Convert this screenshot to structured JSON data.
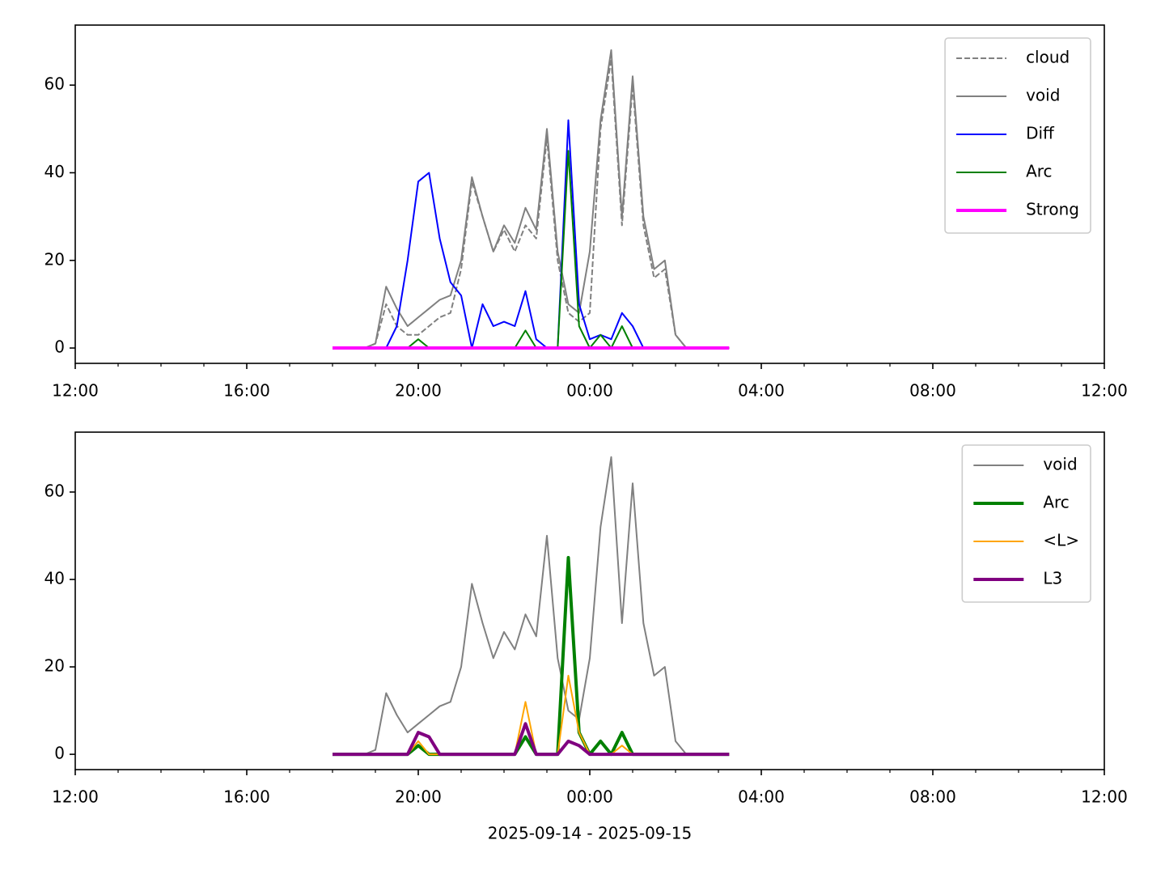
{
  "chart_data": [
    {
      "type": "line",
      "x": [
        6.0,
        6.25,
        6.5,
        6.75,
        7.0,
        7.25,
        7.5,
        7.75,
        8.0,
        8.25,
        8.5,
        8.75,
        9.0,
        9.25,
        9.5,
        9.75,
        10.0,
        10.25,
        10.5,
        10.75,
        11.0,
        11.25,
        11.5,
        11.75,
        12.0,
        12.25,
        12.5,
        12.75,
        13.0,
        13.25,
        13.5,
        13.75,
        14.0,
        14.25,
        14.5,
        14.75,
        15.0,
        15.25
      ],
      "xlim": [
        0,
        24
      ],
      "xticks": [
        {
          "value": 0,
          "label": "12:00"
        },
        {
          "value": 4,
          "label": "16:00"
        },
        {
          "value": 8,
          "label": "20:00"
        },
        {
          "value": 12,
          "label": "00:00"
        },
        {
          "value": 16,
          "label": "04:00"
        },
        {
          "value": 20,
          "label": "08:00"
        },
        {
          "value": 24,
          "label": "12:00"
        }
      ],
      "xminorticks": [
        1,
        2,
        3,
        5,
        6,
        7,
        9,
        10,
        11,
        13,
        14,
        15,
        17,
        18,
        19,
        21,
        22,
        23
      ],
      "ylim": [
        -3.5,
        73.7
      ],
      "yticks": [
        0,
        20,
        40,
        60
      ],
      "legend": "upper right",
      "series": [
        {
          "name": "cloud",
          "color": "#808080",
          "linestyle": "dashed",
          "linewidth": 2,
          "values": [
            0,
            0,
            0,
            0,
            1,
            10,
            5,
            3,
            3,
            5,
            7,
            8,
            18,
            38,
            30,
            22,
            27,
            22,
            28,
            25,
            48,
            20,
            8,
            6,
            8,
            50,
            66,
            28,
            60,
            28,
            16,
            18,
            3,
            0,
            0,
            0,
            0,
            0
          ]
        },
        {
          "name": "void",
          "color": "#808080",
          "linestyle": "solid",
          "linewidth": 2,
          "values": [
            0,
            0,
            0,
            0,
            1,
            14,
            9,
            5,
            7,
            9,
            11,
            12,
            20,
            39,
            30,
            22,
            28,
            24,
            32,
            27,
            50,
            22,
            10,
            8,
            22,
            52,
            68,
            30,
            62,
            30,
            18,
            20,
            3,
            0,
            0,
            0,
            0,
            0
          ]
        },
        {
          "name": "Diff",
          "color": "#0000ff",
          "linestyle": "solid",
          "linewidth": 2,
          "values": [
            0,
            0,
            0,
            0,
            0,
            0,
            5,
            20,
            38,
            40,
            25,
            15,
            12,
            0,
            10,
            5,
            6,
            5,
            13,
            2,
            0,
            0,
            52,
            10,
            2,
            3,
            2,
            8,
            5,
            0,
            0,
            0,
            0,
            0,
            0,
            0,
            0,
            0
          ]
        },
        {
          "name": "Arc",
          "color": "#008000",
          "linestyle": "solid",
          "linewidth": 2,
          "values": [
            0,
            0,
            0,
            0,
            0,
            0,
            0,
            0,
            2,
            0,
            0,
            0,
            0,
            0,
            0,
            0,
            0,
            0,
            4,
            0,
            0,
            0,
            45,
            5,
            0,
            3,
            0,
            5,
            0,
            0,
            0,
            0,
            0,
            0,
            0,
            0,
            0,
            0
          ]
        },
        {
          "name": "Strong",
          "color": "#ff00ff",
          "linestyle": "solid",
          "linewidth": 4,
          "values": [
            0,
            0,
            0,
            0,
            0,
            0,
            0,
            0,
            0,
            0,
            0,
            0,
            0,
            0,
            0,
            0,
            0,
            0,
            0,
            0,
            0,
            0,
            0,
            0,
            0,
            0,
            0,
            0,
            0,
            0,
            0,
            0,
            0,
            0,
            0,
            0,
            0,
            0
          ]
        }
      ]
    },
    {
      "type": "line",
      "x": [
        6.0,
        6.25,
        6.5,
        6.75,
        7.0,
        7.25,
        7.5,
        7.75,
        8.0,
        8.25,
        8.5,
        8.75,
        9.0,
        9.25,
        9.5,
        9.75,
        10.0,
        10.25,
        10.5,
        10.75,
        11.0,
        11.25,
        11.5,
        11.75,
        12.0,
        12.25,
        12.5,
        12.75,
        13.0,
        13.25,
        13.5,
        13.75,
        14.0,
        14.25,
        14.5,
        14.75,
        15.0,
        15.25
      ],
      "xlim": [
        0,
        24
      ],
      "xticks": [
        {
          "value": 0,
          "label": "12:00"
        },
        {
          "value": 4,
          "label": "16:00"
        },
        {
          "value": 8,
          "label": "20:00"
        },
        {
          "value": 12,
          "label": "00:00"
        },
        {
          "value": 16,
          "label": "04:00"
        },
        {
          "value": 20,
          "label": "08:00"
        },
        {
          "value": 24,
          "label": "12:00"
        }
      ],
      "xminorticks": [
        1,
        2,
        3,
        5,
        6,
        7,
        9,
        10,
        11,
        13,
        14,
        15,
        17,
        18,
        19,
        21,
        22,
        23
      ],
      "ylim": [
        -3.5,
        73.7
      ],
      "yticks": [
        0,
        20,
        40,
        60
      ],
      "xlabel": "2025-09-14 - 2025-09-15",
      "legend": "upper right",
      "series": [
        {
          "name": "void",
          "color": "#808080",
          "linestyle": "solid",
          "linewidth": 2,
          "values": [
            0,
            0,
            0,
            0,
            1,
            14,
            9,
            5,
            7,
            9,
            11,
            12,
            20,
            39,
            30,
            22,
            28,
            24,
            32,
            27,
            50,
            22,
            10,
            8,
            22,
            52,
            68,
            30,
            62,
            30,
            18,
            20,
            3,
            0,
            0,
            0,
            0,
            0
          ]
        },
        {
          "name": "Arc",
          "color": "#008000",
          "linestyle": "solid",
          "linewidth": 4,
          "values": [
            0,
            0,
            0,
            0,
            0,
            0,
            0,
            0,
            2,
            0,
            0,
            0,
            0,
            0,
            0,
            0,
            0,
            0,
            4,
            0,
            0,
            0,
            45,
            5,
            0,
            3,
            0,
            5,
            0,
            0,
            0,
            0,
            0,
            0,
            0,
            0,
            0,
            0
          ]
        },
        {
          "name": "<L>",
          "color": "#ffa500",
          "linestyle": "solid",
          "linewidth": 2,
          "values": [
            0,
            0,
            0,
            0,
            0,
            0,
            0,
            0,
            3,
            0,
            0,
            0,
            0,
            0,
            0,
            0,
            0,
            0,
            12,
            0,
            0,
            0,
            18,
            5,
            0,
            0,
            0,
            2,
            0,
            0,
            0,
            0,
            0,
            0,
            0,
            0,
            0,
            0
          ]
        },
        {
          "name": "L3",
          "color": "#800080",
          "linestyle": "solid",
          "linewidth": 4,
          "values": [
            0,
            0,
            0,
            0,
            0,
            0,
            0,
            0,
            5,
            4,
            0,
            0,
            0,
            0,
            0,
            0,
            0,
            0,
            7,
            0,
            0,
            0,
            3,
            2,
            0,
            0,
            0,
            0,
            0,
            0,
            0,
            0,
            0,
            0,
            0,
            0,
            0,
            0
          ]
        }
      ]
    }
  ]
}
